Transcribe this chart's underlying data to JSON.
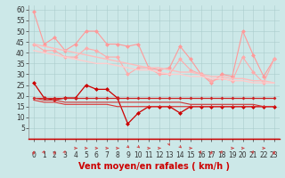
{
  "title": "",
  "xlabel": "Vent moyen/en rafales ( km/h )",
  "x": [
    0,
    1,
    2,
    3,
    4,
    5,
    6,
    7,
    8,
    9,
    10,
    11,
    12,
    13,
    14,
    15,
    16,
    17,
    18,
    19,
    20,
    21,
    22,
    23
  ],
  "series": [
    {
      "label": "line1_pink_spiky",
      "color": "#ff9999",
      "linewidth": 0.8,
      "markersize": 2.5,
      "values": [
        59,
        44,
        47,
        41,
        44,
        50,
        50,
        44,
        44,
        43,
        44,
        33,
        32,
        33,
        43,
        37,
        30,
        26,
        30,
        29,
        50,
        39,
        29,
        37
      ]
    },
    {
      "label": "line2_pink_mid_spiky",
      "color": "#ffaaaa",
      "linewidth": 0.8,
      "markersize": 2.5,
      "values": [
        44,
        41,
        41,
        38,
        38,
        42,
        41,
        38,
        38,
        30,
        33,
        33,
        30,
        30,
        37,
        32,
        30,
        27,
        28,
        27,
        38,
        31,
        26,
        37
      ]
    },
    {
      "label": "line3_pink_smooth",
      "color": "#ffbbbb",
      "linewidth": 1.0,
      "markersize": 0,
      "values": [
        44,
        43,
        42,
        41,
        40,
        39,
        38,
        37,
        36,
        35,
        34,
        33,
        33,
        32,
        31,
        31,
        30,
        29,
        29,
        28,
        28,
        27,
        27,
        26
      ]
    },
    {
      "label": "line4_pink_smooth2",
      "color": "#ffcccc",
      "linewidth": 1.0,
      "markersize": 0,
      "values": [
        41,
        40,
        39,
        38,
        37,
        36,
        35,
        35,
        34,
        33,
        32,
        32,
        31,
        30,
        30,
        29,
        29,
        28,
        28,
        27,
        27,
        26,
        26,
        26
      ]
    },
    {
      "label": "line5_red_spiky",
      "color": "#cc0000",
      "linewidth": 0.9,
      "markersize": 2.5,
      "values": [
        26,
        19,
        18,
        19,
        19,
        25,
        23,
        23,
        19,
        7,
        12,
        15,
        15,
        15,
        12,
        15,
        15,
        15,
        15,
        15,
        15,
        15,
        15,
        15
      ]
    },
    {
      "label": "line6_red_flat",
      "color": "#cc2222",
      "linewidth": 0.9,
      "markersize": 2.0,
      "values": [
        19,
        19,
        19,
        19,
        19,
        19,
        19,
        19,
        19,
        19,
        19,
        19,
        19,
        19,
        19,
        19,
        19,
        19,
        19,
        19,
        19,
        19,
        19,
        19
      ]
    },
    {
      "label": "line7_red_smooth",
      "color": "#cc3333",
      "linewidth": 0.8,
      "markersize": 0,
      "values": [
        19,
        18,
        18,
        17,
        17,
        17,
        17,
        17,
        17,
        17,
        17,
        17,
        17,
        17,
        17,
        16,
        16,
        16,
        16,
        16,
        16,
        16,
        15,
        15
      ]
    },
    {
      "label": "line8_red_smooth2",
      "color": "#dd3333",
      "linewidth": 0.8,
      "markersize": 0,
      "values": [
        18,
        17,
        17,
        16,
        16,
        16,
        16,
        16,
        15,
        15,
        15,
        15,
        15,
        15,
        15,
        15,
        15,
        15,
        15,
        15,
        15,
        15,
        15,
        15
      ]
    }
  ],
  "ylim": [
    0,
    62
  ],
  "yticks": [
    5,
    10,
    15,
    20,
    25,
    30,
    35,
    40,
    45,
    50,
    55,
    60
  ],
  "xticks": [
    0,
    1,
    2,
    3,
    4,
    5,
    6,
    7,
    8,
    9,
    10,
    11,
    12,
    13,
    14,
    15,
    16,
    17,
    18,
    19,
    20,
    21,
    22,
    23
  ],
  "bg_color": "#cce8e8",
  "grid_color": "#aacccc",
  "xlabel_color": "#cc0000",
  "xlabel_fontsize": 7,
  "tick_fontsize": 5.5,
  "arrow_color": "#cc4444",
  "axis_color": "#cc0000",
  "bottom_line_color": "#cc0000"
}
